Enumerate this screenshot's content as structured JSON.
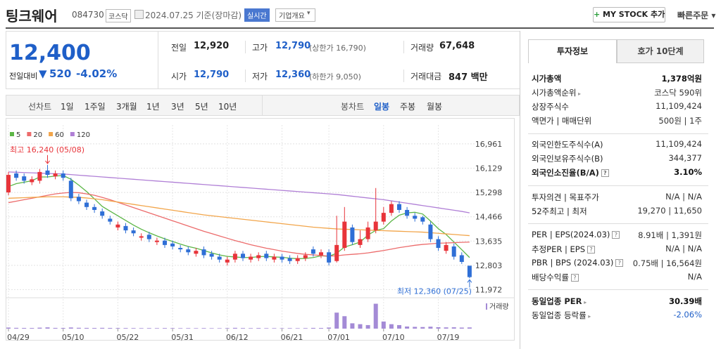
{
  "header": {
    "name": "팅크웨어",
    "code": "084730",
    "market": "코스닥",
    "date": "2024.07.25 기준(장마감)",
    "realtime": "실시간",
    "overview": "기업개요",
    "my_stock": "MY STOCK 추가",
    "quick_order": "빠른주문"
  },
  "quote": {
    "price": "12,400",
    "change_label": "전일대비",
    "change": "520",
    "change_rate": "-4.02%",
    "stats": [
      {
        "label": "전일",
        "value": "12,920"
      },
      {
        "label": "고가",
        "value": "12,790",
        "note": "(상한가 16,790)"
      },
      {
        "label": "거래량",
        "value": "67,648"
      },
      {
        "label": "시가",
        "value": "12,790"
      },
      {
        "label": "저가",
        "value": "12,360",
        "note": "(하한가 9,050)"
      },
      {
        "label": "거래대금",
        "value": "847 백만"
      }
    ]
  },
  "toolbar": {
    "line_chart": "선차트",
    "periods": [
      "1일",
      "1주일",
      "3개월",
      "1년",
      "3년",
      "5년",
      "10년"
    ],
    "candle_chart": "봉차트",
    "candle_periods": [
      "일봉",
      "주봉",
      "월봉"
    ]
  },
  "chart_data": {
    "type": "candlestick",
    "up_color": "#e8343a",
    "down_color": "#2f6fd6",
    "categories": [
      "04/29",
      null,
      null,
      null,
      null,
      null,
      null,
      "05/10",
      null,
      null,
      null,
      null,
      null,
      null,
      "05/22",
      null,
      null,
      null,
      null,
      null,
      null,
      "05/31",
      null,
      null,
      null,
      null,
      null,
      null,
      "06/12",
      null,
      null,
      null,
      null,
      null,
      null,
      "06/21",
      null,
      null,
      null,
      null,
      null,
      "07/01",
      null,
      null,
      null,
      null,
      null,
      null,
      "07/10",
      null,
      null,
      null,
      null,
      null,
      null,
      "07/19",
      null,
      null,
      null,
      null
    ],
    "open": [
      15300,
      15950,
      15850,
      15650,
      15700,
      16050,
      15850,
      15950,
      15700,
      15150,
      14950,
      14800,
      14650,
      14400,
      14100,
      14150,
      14000,
      13750,
      13850,
      13600,
      13650,
      13550,
      13400,
      13350,
      13200,
      13350,
      13200,
      13100,
      12900,
      13000,
      13200,
      13000,
      13050,
      13200,
      13000,
      13100,
      13050,
      12950,
      13050,
      13350,
      13150,
      13250,
      12950,
      13400,
      14100,
      13500,
      13700,
      14000,
      14300,
      14600,
      14900,
      14700,
      14500,
      14450,
      14200,
      13700,
      13300,
      13450,
      13150,
      12790
    ],
    "high": [
      16000,
      16050,
      15950,
      15850,
      16100,
      16240,
      16050,
      16050,
      15800,
      15250,
      15050,
      14900,
      14750,
      14500,
      14300,
      14250,
      14100,
      13900,
      13950,
      13750,
      13750,
      13650,
      13500,
      13450,
      13400,
      13450,
      13300,
      13200,
      13100,
      13300,
      13300,
      13200,
      13250,
      13300,
      13200,
      13200,
      13150,
      13150,
      13250,
      13450,
      13350,
      13350,
      14500,
      14800,
      14200,
      14000,
      14300,
      15450,
      14800,
      15000,
      15000,
      14800,
      14600,
      14500,
      14300,
      13800,
      13600,
      13550,
      13250,
      12790
    ],
    "low": [
      15200,
      15700,
      15600,
      15550,
      15600,
      15800,
      15750,
      15700,
      15000,
      14900,
      14700,
      14600,
      14400,
      14200,
      14000,
      13900,
      13800,
      13650,
      13600,
      13500,
      13400,
      13350,
      13250,
      13150,
      13100,
      13050,
      13000,
      12900,
      12800,
      12900,
      12950,
      12900,
      12950,
      12950,
      12900,
      12900,
      12850,
      12850,
      12950,
      13100,
      13050,
      12800,
      12900,
      13300,
      13500,
      13400,
      13600,
      13900,
      14200,
      14500,
      14600,
      14400,
      14300,
      14200,
      13600,
      13300,
      13200,
      13000,
      12850,
      12360
    ],
    "close": [
      15900,
      15800,
      15700,
      15750,
      16000,
      15900,
      15950,
      15800,
      15100,
      15000,
      14800,
      14700,
      14500,
      14300,
      14200,
      14000,
      13900,
      13800,
      13700,
      13650,
      13500,
      13450,
      13350,
      13250,
      13300,
      13150,
      13100,
      13000,
      13000,
      13200,
      13050,
      13100,
      13150,
      13050,
      13100,
      13000,
      12950,
      13050,
      13150,
      13200,
      13250,
      12900,
      13500,
      14300,
      13600,
      13700,
      14100,
      14300,
      14600,
      14900,
      14700,
      14500,
      14400,
      14300,
      13700,
      13400,
      13500,
      13100,
      12920,
      12400
    ],
    "moving_averages": [
      {
        "name": "5",
        "color": "#5cb646",
        "values": [
          15500,
          15600,
          15650,
          15700,
          15830,
          15830,
          15860,
          15880,
          15750,
          15550,
          15330,
          15080,
          14820,
          14660,
          14500,
          14340,
          14180,
          14040,
          13920,
          13810,
          13710,
          13620,
          13530,
          13450,
          13390,
          13310,
          13230,
          13160,
          13110,
          13090,
          13070,
          13070,
          13100,
          13110,
          13090,
          13080,
          13050,
          13030,
          13040,
          13070,
          13130,
          13110,
          13220,
          13430,
          13510,
          13600,
          13840,
          14000,
          14060,
          14320,
          14520,
          14600,
          14620,
          14560,
          14320,
          14060,
          13860,
          13600,
          13340,
          13070
        ]
      },
      {
        "name": "20",
        "color": "#ec6b6b",
        "values": [
          14950,
          15000,
          15050,
          15100,
          15150,
          15200,
          15250,
          15280,
          15300,
          15290,
          15250,
          15200,
          15130,
          15050,
          14960,
          14870,
          14780,
          14690,
          14600,
          14510,
          14420,
          14330,
          14240,
          14150,
          14060,
          13970,
          13890,
          13810,
          13730,
          13650,
          13580,
          13510,
          13450,
          13390,
          13340,
          13290,
          13250,
          13210,
          13180,
          13160,
          13140,
          13120,
          13130,
          13160,
          13180,
          13200,
          13230,
          13270,
          13310,
          13360,
          13410,
          13450,
          13490,
          13520,
          13540,
          13560,
          13570,
          13580,
          13590,
          13600
        ]
      },
      {
        "name": "60",
        "color": "#f2a54a",
        "values": [
          15100,
          15110,
          15120,
          15130,
          15140,
          15150,
          15150,
          15150,
          15140,
          15130,
          15110,
          15080,
          15050,
          15010,
          14970,
          14930,
          14890,
          14850,
          14810,
          14770,
          14730,
          14690,
          14650,
          14610,
          14570,
          14530,
          14500,
          14470,
          14440,
          14410,
          14380,
          14350,
          14320,
          14290,
          14260,
          14230,
          14200,
          14170,
          14140,
          14110,
          14090,
          14070,
          14050,
          14040,
          14030,
          14020,
          14010,
          14000,
          13990,
          13980,
          13970,
          13960,
          13950,
          13940,
          13920,
          13900,
          13880,
          13860,
          13840,
          13820
        ]
      },
      {
        "name": "120",
        "color": "#b07fd6",
        "values": [
          16000,
          15990,
          15980,
          15970,
          15960,
          15950,
          15940,
          15930,
          15910,
          15890,
          15870,
          15850,
          15830,
          15810,
          15790,
          15770,
          15750,
          15730,
          15710,
          15690,
          15670,
          15650,
          15630,
          15610,
          15590,
          15570,
          15550,
          15530,
          15510,
          15490,
          15470,
          15450,
          15430,
          15410,
          15390,
          15370,
          15350,
          15330,
          15310,
          15290,
          15270,
          15250,
          15230,
          15200,
          15170,
          15140,
          15110,
          15080,
          15050,
          15010,
          14970,
          14930,
          14890,
          14850,
          14810,
          14770,
          14730,
          14690,
          14650,
          14600
        ]
      }
    ],
    "ylim": [
      11790,
      17320
    ],
    "yticks": [
      {
        "value": 16961,
        "label": "16,961"
      },
      {
        "value": 16129,
        "label": "16,129"
      },
      {
        "value": 15298,
        "label": "15,298"
      },
      {
        "value": 14466,
        "label": "14,466"
      },
      {
        "value": 13635,
        "label": "13,635"
      },
      {
        "value": 12803,
        "label": "12,803"
      },
      {
        "value": 11972,
        "label": "11,972"
      }
    ],
    "annotations": [
      {
        "text": "최고 16,240 (05/08)",
        "value": 16240,
        "index": 5
      },
      {
        "text": "최저 12,360 (07/25)",
        "value": 12360,
        "index": 59
      }
    ],
    "volume": {
      "label": "거래량",
      "color": "#a48bd6",
      "ylim": [
        0,
        1500000
      ],
      "values": [
        60000,
        45000,
        40000,
        38000,
        55000,
        70000,
        42000,
        40000,
        65000,
        48000,
        42000,
        38000,
        45000,
        40000,
        36000,
        35000,
        33000,
        30000,
        32000,
        30000,
        34000,
        31000,
        29000,
        30000,
        28000,
        32000,
        27000,
        26000,
        30000,
        45000,
        33000,
        30000,
        35000,
        28000,
        29000,
        26000,
        30000,
        27000,
        31000,
        42000,
        38000,
        60000,
        900000,
        700000,
        300000,
        250000,
        200000,
        1400000,
        400000,
        250000,
        200000,
        120000,
        100000,
        90000,
        110000,
        80000,
        70000,
        75000,
        60000,
        67648
      ]
    }
  },
  "sidebar": {
    "tabs": [
      "투자정보",
      "호가 10단계"
    ],
    "rows": [
      {
        "label": "시가총액",
        "value": "1,378억원"
      },
      {
        "label": "시가총액순위",
        "value": "코스닥 590위"
      },
      {
        "label": "상장주식수",
        "value": "11,109,424"
      },
      {
        "label": "액면가 | 매매단위",
        "value": "500원 | 1주"
      },
      {
        "label": "외국인한도주식수(A)",
        "value": "11,109,424"
      },
      {
        "label": "외국인보유주식수(B)",
        "value": "344,377"
      },
      {
        "label": "외국인소진율(B/A)",
        "value": "3.10%"
      },
      {
        "label": "투자의견 | 목표주가",
        "value": "N/A | N/A"
      },
      {
        "label": "52주최고 | 최저",
        "value": "19,270 | 11,650"
      },
      {
        "label": "PER | EPS(2024.03)",
        "value": "8.91배 | 1,391원"
      },
      {
        "label": "추정PER | EPS",
        "value": "N/A | N/A"
      },
      {
        "label": "PBR | BPS (2024.03)",
        "value": "0.75배 | 16,564원"
      },
      {
        "label": "배당수익률",
        "value": "N/A"
      },
      {
        "label": "동일업종 PER",
        "value": "30.39배"
      },
      {
        "label": "동일업종 등락률",
        "value": "-2.06%"
      }
    ]
  }
}
